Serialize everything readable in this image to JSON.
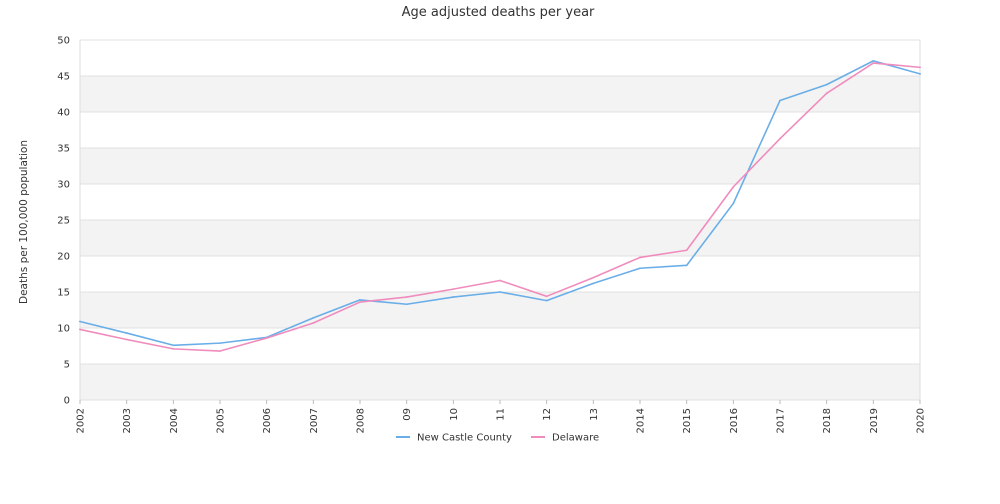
{
  "chart_data": {
    "type": "line",
    "title": "Age adjusted deaths per year",
    "ylabel": "Deaths per 100,000 population",
    "xlabel": "",
    "ylim": [
      0,
      50
    ],
    "yticks": [
      0,
      5,
      10,
      15,
      20,
      25,
      30,
      35,
      40,
      45,
      50
    ],
    "categories": [
      "2002",
      "2003",
      "2004",
      "2005",
      "2006",
      "2007",
      "2008",
      "09",
      "10",
      "11",
      "12",
      "13",
      "2014",
      "2015",
      "2016",
      "2017",
      "2018",
      "2019",
      "2020"
    ],
    "grid": true,
    "legend_position": "bottom",
    "series": [
      {
        "name": "New Castle County",
        "color": "#6aaee8",
        "values": [
          10.9,
          9.3,
          7.6,
          7.9,
          8.7,
          11.4,
          13.9,
          13.3,
          14.3,
          15.0,
          13.8,
          16.2,
          18.3,
          18.7,
          27.3,
          41.6,
          43.8,
          47.1,
          45.3
        ]
      },
      {
        "name": "Delaware",
        "color": "#f08cbd",
        "values": [
          9.8,
          8.4,
          7.1,
          6.8,
          8.6,
          10.7,
          13.6,
          14.3,
          15.4,
          16.6,
          14.4,
          17.0,
          19.8,
          20.8,
          29.6,
          36.3,
          42.6,
          46.8,
          46.2
        ]
      }
    ]
  }
}
